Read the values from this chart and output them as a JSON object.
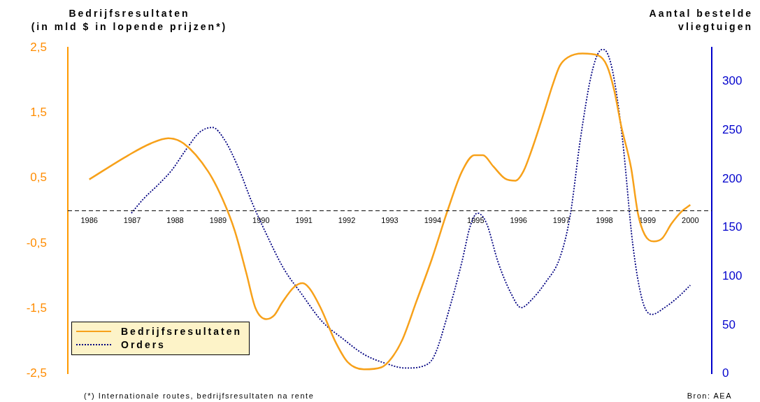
{
  "chart_data": {
    "type": "line",
    "ylabel": "Bedrijfsresultaten\n(in mld $ in lopende prijzen*)",
    "y2label": "Aantal bestelde vliegtuigen",
    "xlim": [
      1985.5,
      2000.5
    ],
    "xticks": [
      1986,
      1987,
      1988,
      1989,
      1990,
      1991,
      1992,
      1993,
      1994,
      1995,
      1996,
      1997,
      1998,
      1999,
      2000
    ],
    "ylim": [
      -2.5,
      2.5
    ],
    "yticks": [
      {
        "value": -2.5,
        "label": "-2,5"
      },
      {
        "value": -1.5,
        "label": "-1,5"
      },
      {
        "value": -0.5,
        "label": "-0,5"
      },
      {
        "value": 0.5,
        "label": "0,5"
      },
      {
        "value": 1.5,
        "label": "1,5"
      },
      {
        "value": 2.5,
        "label": "2,5"
      }
    ],
    "y2lim": [
      0,
      335
    ],
    "y2ticks": [
      0,
      50,
      100,
      150,
      200,
      250,
      300
    ],
    "grid": false,
    "legend": "bottom left",
    "marker": "none",
    "ref_lines": [
      {
        "axis": "y",
        "value": 0,
        "color": "#000000",
        "line_style": "dashed"
      }
    ],
    "annotations": [
      "(*) Internationale routes, bedrijfsresultaten na rente",
      "Bron: AEA"
    ],
    "series": [
      {
        "name": "Bedrijfsresultaten",
        "color": "#f7a11a",
        "line_style": "solid",
        "x": [
          1986.0,
          1986.91,
          1987.43,
          1987.84,
          1988.2,
          1988.77,
          1989.11,
          1989.39,
          1989.66,
          1989.87,
          1990.12,
          1990.31,
          1990.49,
          1990.77,
          1990.97,
          1991.13,
          1991.39,
          1991.75,
          1992.02,
          1992.4,
          1992.8,
          1993.05,
          1993.29,
          1993.62,
          1993.98,
          1994.35,
          1994.68,
          1994.97,
          1995.17,
          1995.41,
          1995.69,
          1995.93,
          1996.11,
          1996.3,
          1996.6,
          1996.79,
          1996.96,
          1997.15,
          1997.49,
          1997.85,
          1998.06,
          1998.23,
          1998.39,
          1998.62,
          1998.78,
          1998.94,
          1999.15,
          1999.35,
          1999.56,
          1999.8,
          2000.0
        ],
        "values": [
          0.48,
          0.85,
          1.03,
          1.11,
          1.03,
          0.6,
          0.17,
          -0.31,
          -0.96,
          -1.49,
          -1.66,
          -1.6,
          -1.41,
          -1.17,
          -1.11,
          -1.19,
          -1.49,
          -2.03,
          -2.32,
          -2.43,
          -2.4,
          -2.25,
          -1.98,
          -1.39,
          -0.74,
          0.01,
          0.6,
          0.85,
          0.85,
          0.68,
          0.49,
          0.46,
          0.6,
          0.92,
          1.52,
          1.92,
          2.22,
          2.35,
          2.41,
          2.38,
          2.22,
          1.84,
          1.3,
          0.66,
          -0.04,
          -0.37,
          -0.47,
          -0.42,
          -0.2,
          -0.01,
          0.09
        ]
      },
      {
        "name": "Orders",
        "color": "#000080",
        "line_style": "dotted",
        "axis": "y2",
        "x": [
          1986.98,
          1987.27,
          1987.6,
          1987.92,
          1988.25,
          1988.57,
          1988.87,
          1989.14,
          1989.47,
          1989.79,
          1990.12,
          1990.53,
          1990.93,
          1991.42,
          1991.91,
          1992.4,
          1992.89,
          1993.38,
          1993.78,
          1994.03,
          1994.35,
          1994.68,
          1994.87,
          1995.04,
          1995.25,
          1995.52,
          1995.82,
          1996.06,
          1996.3,
          1996.63,
          1996.96,
          1997.2,
          1997.44,
          1997.69,
          1997.88,
          1997.98,
          1998.18,
          1998.42,
          1998.66,
          1998.88,
          1999.1,
          1999.4,
          1999.72,
          2000.0
        ],
        "values": [
          165,
          180,
          194,
          209,
          230,
          248,
          253,
          241,
          212,
          176,
          144,
          108,
          83,
          54,
          36,
          20,
          11,
          6,
          8,
          18,
          61,
          115,
          151,
          165,
          155,
          115,
          83,
          68,
          76,
          94,
          119,
          162,
          241,
          306,
          331,
          333,
          313,
          241,
          133,
          76,
          61,
          68,
          79,
          91
        ]
      }
    ]
  }
}
